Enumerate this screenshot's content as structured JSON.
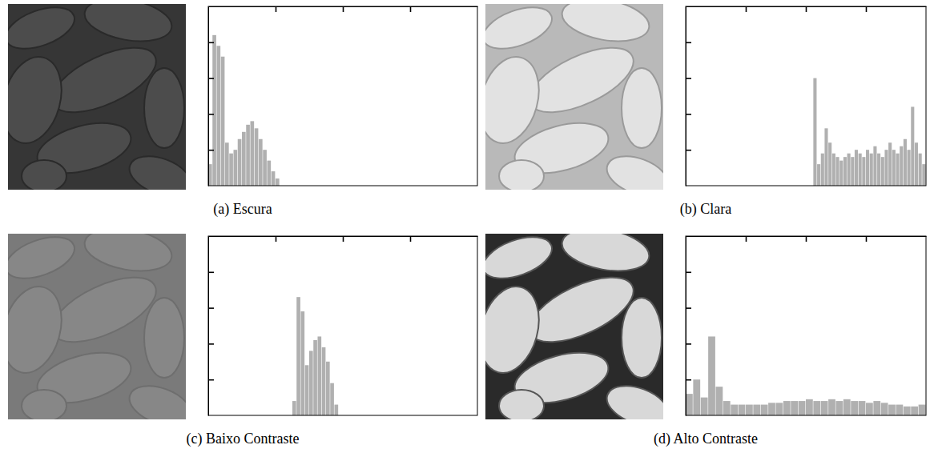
{
  "chart_data": [
    {
      "type": "histogram",
      "title": "(a) Escura",
      "color": "#b0b0b0",
      "bins": [
        0,
        4,
        8,
        12,
        16,
        20,
        24,
        28,
        32,
        36,
        40,
        44,
        48,
        52,
        56,
        60,
        64,
        68
      ],
      "values": [
        0.6,
        4.2,
        3.9,
        3.6,
        1.2,
        0.9,
        1.0,
        1.3,
        1.5,
        1.7,
        1.8,
        1.6,
        1.3,
        1.0,
        0.7,
        0.4,
        0.2
      ],
      "xlim": [
        0,
        256
      ],
      "xticks": [
        64,
        128,
        192
      ],
      "ylim": [
        0,
        5
      ],
      "yticks": [
        1,
        2,
        3,
        4
      ],
      "tick_labels": false
    },
    {
      "type": "histogram",
      "title": "(b) Clara",
      "color": "#b0b0b0",
      "bins": [
        136,
        140,
        144,
        148,
        152,
        156,
        160,
        164,
        168,
        172,
        176,
        180,
        184,
        188,
        192,
        196,
        200,
        204,
        208,
        212,
        216,
        220,
        224,
        228,
        232,
        236,
        240,
        244,
        248,
        252,
        256
      ],
      "values": [
        3.0,
        0.6,
        0.9,
        1.6,
        1.2,
        0.9,
        0.8,
        0.7,
        0.8,
        0.9,
        0.8,
        1.0,
        0.9,
        0.8,
        1.0,
        0.9,
        1.1,
        0.9,
        0.8,
        1.0,
        1.2,
        1.0,
        0.9,
        1.1,
        1.3,
        1.0,
        2.2,
        1.2,
        0.9,
        0.6
      ],
      "xlim": [
        0,
        256
      ],
      "xticks": [
        64,
        128,
        192
      ],
      "ylim": [
        0,
        5
      ],
      "yticks": [
        1,
        2,
        3,
        4
      ],
      "tick_labels": false
    },
    {
      "type": "histogram",
      "title": "(c) Baixo Contraste",
      "color": "#b0b0b0",
      "bins": [
        80,
        84,
        88,
        92,
        96,
        100,
        104,
        108,
        112,
        116,
        120,
        124
      ],
      "values": [
        0.4,
        3.3,
        2.9,
        1.4,
        1.8,
        2.1,
        2.2,
        1.9,
        1.5,
        0.9,
        0.3
      ],
      "xlim": [
        0,
        256
      ],
      "xticks": [
        64,
        128,
        192
      ],
      "ylim": [
        0,
        5
      ],
      "yticks": [
        1,
        2,
        3,
        4
      ],
      "tick_labels": false
    },
    {
      "type": "histogram",
      "title": "(d) Alto Contraste",
      "color": "#b0b0b0",
      "bins": [
        0,
        8,
        16,
        24,
        32,
        40,
        48,
        56,
        64,
        72,
        80,
        88,
        96,
        104,
        112,
        120,
        128,
        136,
        144,
        152,
        160,
        168,
        176,
        184,
        192,
        200,
        208,
        216,
        224,
        232,
        240,
        248,
        256
      ],
      "values": [
        0.6,
        1.0,
        0.5,
        2.2,
        0.8,
        0.4,
        0.3,
        0.3,
        0.3,
        0.3,
        0.3,
        0.35,
        0.35,
        0.4,
        0.4,
        0.4,
        0.45,
        0.4,
        0.4,
        0.45,
        0.4,
        0.45,
        0.4,
        0.4,
        0.35,
        0.4,
        0.35,
        0.3,
        0.3,
        0.25,
        0.25,
        0.3
      ],
      "xlim": [
        0,
        256
      ],
      "xticks": [
        64,
        128,
        192
      ],
      "ylim": [
        0,
        5
      ],
      "yticks": [
        1,
        2,
        3,
        4
      ],
      "tick_labels": false
    }
  ]
}
